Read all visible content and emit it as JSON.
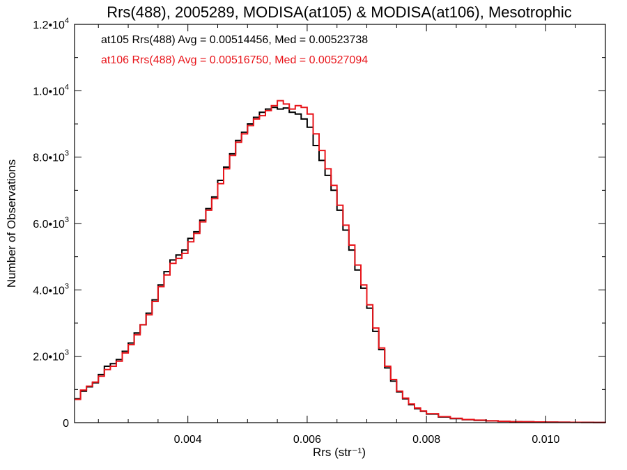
{
  "chart_data": {
    "type": "line",
    "title": "Rrs(488), 2005289, MODISA(at105) & MODISA(at106), Mesotrophic",
    "xlabel": "Rrs (str⁻¹)",
    "ylabel": "Number of Observations",
    "xlim": [
      0.0021,
      0.011
    ],
    "ylim": [
      0,
      12000
    ],
    "x_ticks": [
      {
        "value": 0.004,
        "label": "0.004"
      },
      {
        "value": 0.006,
        "label": "0.006"
      },
      {
        "value": 0.008,
        "label": "0.008"
      },
      {
        "value": 0.01,
        "label": "0.010"
      }
    ],
    "y_ticks": [
      {
        "value": 0,
        "mant": "0",
        "exp": ""
      },
      {
        "value": 2000,
        "mant": "2.0•10",
        "exp": "3"
      },
      {
        "value": 4000,
        "mant": "4.0•10",
        "exp": "3"
      },
      {
        "value": 6000,
        "mant": "6.0•10",
        "exp": "3"
      },
      {
        "value": 8000,
        "mant": "8.0•10",
        "exp": "3"
      },
      {
        "value": 10000,
        "mant": "1.0•10",
        "exp": "4"
      },
      {
        "value": 12000,
        "mant": "1.2•10",
        "exp": "4"
      }
    ],
    "annotations": [
      {
        "text": "at105 Rrs(488) Avg = 0.00514456, Med = 0.00523738",
        "color": "#000000"
      },
      {
        "text": "at106 Rrs(488) Avg = 0.00516750, Med = 0.00527094",
        "color": "#e8141a"
      }
    ],
    "series": [
      {
        "color": "#000000",
        "x": [
          0.0021,
          0.0022,
          0.0023,
          0.0024,
          0.0025,
          0.0026,
          0.0027,
          0.0028,
          0.0029,
          0.003,
          0.0031,
          0.0032,
          0.0033,
          0.0034,
          0.0035,
          0.0036,
          0.0037,
          0.0038,
          0.0039,
          0.004,
          0.0041,
          0.0042,
          0.0043,
          0.0044,
          0.0045,
          0.0046,
          0.0047,
          0.0048,
          0.0049,
          0.005,
          0.0051,
          0.0052,
          0.0053,
          0.0054,
          0.0055,
          0.0056,
          0.0057,
          0.0058,
          0.0059,
          0.006,
          0.0061,
          0.0062,
          0.0063,
          0.0064,
          0.0065,
          0.0066,
          0.0067,
          0.0068,
          0.0069,
          0.007,
          0.0071,
          0.0072,
          0.0073,
          0.0074,
          0.0075,
          0.0076,
          0.0077,
          0.0078,
          0.0079,
          0.008,
          0.0082,
          0.0084,
          0.0086,
          0.0088,
          0.009,
          0.0092,
          0.0094,
          0.0096,
          0.0098,
          0.01,
          0.0102,
          0.0104,
          0.0106,
          0.0108,
          0.011
        ],
        "y": [
          720,
          950,
          1080,
          1200,
          1450,
          1700,
          1780,
          1900,
          2150,
          2400,
          2700,
          2950,
          3300,
          3700,
          4150,
          4550,
          4900,
          5050,
          5200,
          5550,
          5750,
          6100,
          6450,
          6800,
          7300,
          7700,
          8100,
          8500,
          8750,
          9000,
          9200,
          9350,
          9450,
          9500,
          9450,
          9480,
          9350,
          9300,
          9150,
          8900,
          8350,
          7900,
          7450,
          7000,
          6400,
          5800,
          5200,
          4600,
          4050,
          3450,
          2750,
          2200,
          1650,
          1250,
          930,
          720,
          540,
          420,
          340,
          260,
          170,
          120,
          90,
          70,
          55,
          40,
          30,
          25,
          20,
          15,
          12,
          10,
          8,
          5,
          3
        ]
      },
      {
        "color": "#e8141a",
        "x": [
          0.0021,
          0.0022,
          0.0023,
          0.0024,
          0.0025,
          0.0026,
          0.0027,
          0.0028,
          0.0029,
          0.003,
          0.0031,
          0.0032,
          0.0033,
          0.0034,
          0.0035,
          0.0036,
          0.0037,
          0.0038,
          0.0039,
          0.004,
          0.0041,
          0.0042,
          0.0043,
          0.0044,
          0.0045,
          0.0046,
          0.0047,
          0.0048,
          0.0049,
          0.005,
          0.0051,
          0.0052,
          0.0053,
          0.0054,
          0.0055,
          0.0056,
          0.0057,
          0.0058,
          0.0059,
          0.006,
          0.0061,
          0.0062,
          0.0063,
          0.0064,
          0.0065,
          0.0066,
          0.0067,
          0.0068,
          0.0069,
          0.007,
          0.0071,
          0.0072,
          0.0073,
          0.0074,
          0.0075,
          0.0076,
          0.0077,
          0.0078,
          0.0079,
          0.008,
          0.0082,
          0.0084,
          0.0086,
          0.0088,
          0.009,
          0.0092,
          0.0094,
          0.0096,
          0.0098,
          0.01,
          0.0102,
          0.0104,
          0.0106,
          0.0108,
          0.011
        ],
        "y": [
          700,
          980,
          1100,
          1220,
          1400,
          1600,
          1700,
          1850,
          2100,
          2350,
          2650,
          2950,
          3250,
          3650,
          4100,
          4450,
          4800,
          4950,
          5100,
          5450,
          5700,
          6050,
          6400,
          6750,
          7200,
          7650,
          8050,
          8450,
          8700,
          8950,
          9150,
          9250,
          9400,
          9550,
          9700,
          9600,
          9450,
          9550,
          9500,
          9300,
          8700,
          8200,
          7650,
          7150,
          6550,
          5950,
          5350,
          4750,
          4150,
          3550,
          2850,
          2250,
          1700,
          1300,
          950,
          740,
          560,
          440,
          350,
          270,
          180,
          130,
          95,
          75,
          55,
          40,
          30,
          25,
          20,
          15,
          12,
          10,
          8,
          5,
          3
        ]
      }
    ]
  }
}
